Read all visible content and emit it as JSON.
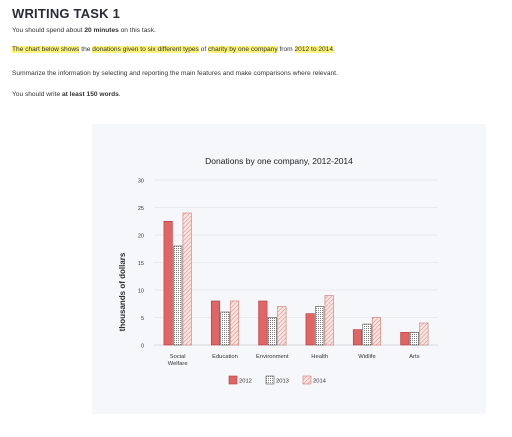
{
  "page": {
    "title": "WRITING TASK 1",
    "time_line": {
      "pre": "You should spend about ",
      "bold": "20 minutes",
      "post": " on this task."
    },
    "prompt_segments": [
      {
        "text": "The chart below shows",
        "hl": true
      },
      {
        "text": " the ",
        "hl": false
      },
      {
        "text": "donations given to six different types",
        "hl": true
      },
      {
        "text": " of ",
        "hl": false
      },
      {
        "text": "charity by one company",
        "hl": true
      },
      {
        "text": " from ",
        "hl": false
      },
      {
        "text": "2012 to 2014",
        "hl": true
      },
      {
        "text": ".",
        "hl": false
      }
    ],
    "instruction": "Summarize the information by selecting and reporting the main features and make comparisons where relevant.",
    "words_line": {
      "pre": "You should write ",
      "bold": "at least 150 words",
      "post": "."
    }
  },
  "colors": {
    "highlight": "#fbf37a",
    "bar_2012": "#e06666",
    "bar_edge": "#b03a3a",
    "card_bg": "#f5f7fa"
  },
  "chart_data": {
    "type": "bar",
    "title": "Donations by one company, 2012-2014",
    "ylabel": "thousands of dollars",
    "xlabel": "",
    "ylim": [
      0,
      30
    ],
    "yticks": [
      "0",
      "5",
      "10",
      "15",
      "20",
      "25",
      "30"
    ],
    "categories": [
      [
        "Social",
        "Welfare"
      ],
      [
        "Education"
      ],
      [
        "Environment"
      ],
      [
        "Health"
      ],
      [
        "Widlife"
      ],
      [
        "Arts"
      ]
    ],
    "series": [
      {
        "name": "2012",
        "values": [
          22.5,
          8,
          8,
          5.7,
          2.8,
          2.3
        ]
      },
      {
        "name": "2013",
        "values": [
          18,
          6,
          5,
          7,
          3.8,
          2.3
        ]
      },
      {
        "name": "2014",
        "values": [
          24,
          8,
          7,
          9,
          5,
          4
        ]
      }
    ],
    "legend_position": "bottom",
    "grid": true
  }
}
